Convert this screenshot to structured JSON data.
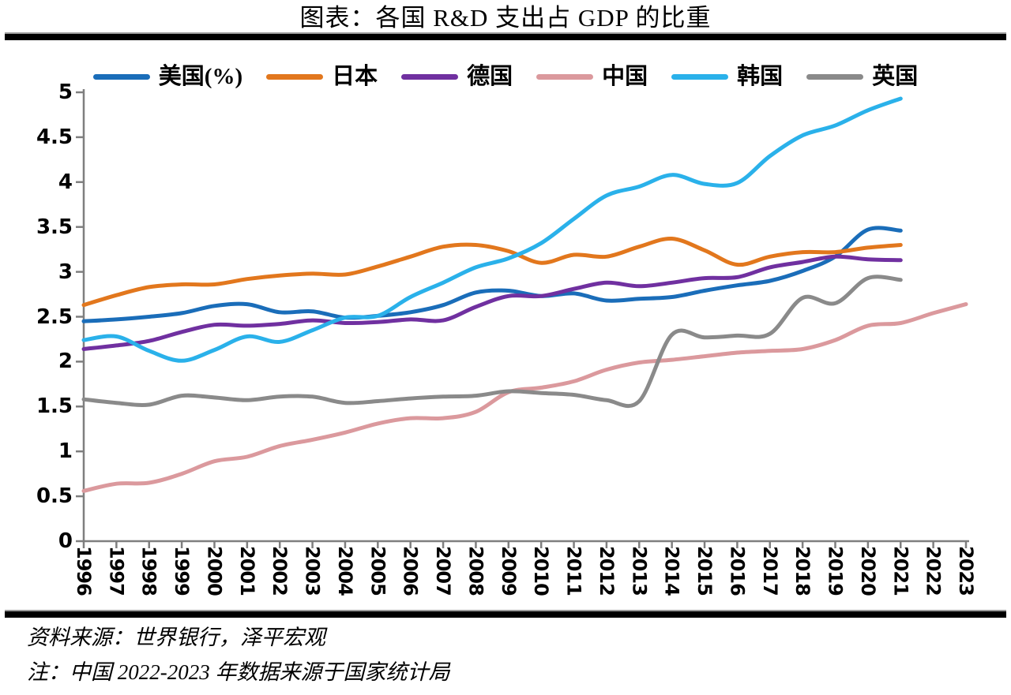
{
  "title": "图表：各国 R&D 支出占 GDP 的比重",
  "footer": {
    "source": "资料来源：世界银行，泽平宏观",
    "note": "注：中国 2022-2023 年数据来源于国家统计局"
  },
  "axis_color": "#7f7f7f",
  "chart_data": {
    "type": "line",
    "title": "图表：各国 R&D 支出占 GDP 的比重",
    "xlabel": "",
    "ylabel": "",
    "ylim": [
      0,
      5
    ],
    "grid": false,
    "legend_position": "top",
    "smoothed_lines": true,
    "y_tick_labels": [
      "0",
      "0.5",
      "1",
      "1.5",
      "2",
      "2.5",
      "3",
      "3.5",
      "4",
      "4.5",
      "5"
    ],
    "y_ticks": [
      0,
      0.5,
      1,
      1.5,
      2,
      2.5,
      3,
      3.5,
      4,
      4.5,
      5
    ],
    "x_labels": [
      "1996",
      "1997",
      "1998",
      "1999",
      "2000",
      "2001",
      "2002",
      "2003",
      "2004",
      "2005",
      "2006",
      "2007",
      "2008",
      "2009",
      "2010",
      "2011",
      "2012",
      "2013",
      "2014",
      "2015",
      "2016",
      "2017",
      "2018",
      "2019",
      "2020",
      "2021",
      "2022",
      "2023"
    ],
    "x_start_year": 1996,
    "series": [
      {
        "id": "us",
        "name": "美国(%)",
        "color": "#1a6db9",
        "values": [
          2.45,
          2.47,
          2.5,
          2.54,
          2.62,
          2.64,
          2.55,
          2.56,
          2.49,
          2.51,
          2.55,
          2.63,
          2.77,
          2.79,
          2.73,
          2.76,
          2.68,
          2.7,
          2.72,
          2.79,
          2.85,
          2.9,
          3.01,
          3.17,
          3.47,
          3.46
        ]
      },
      {
        "id": "japan",
        "name": "日本",
        "color": "#e2771d",
        "values": [
          2.63,
          2.74,
          2.83,
          2.86,
          2.86,
          2.92,
          2.96,
          2.98,
          2.97,
          3.06,
          3.17,
          3.28,
          3.3,
          3.23,
          3.1,
          3.19,
          3.17,
          3.28,
          3.37,
          3.24,
          3.08,
          3.17,
          3.22,
          3.22,
          3.27,
          3.3
        ]
      },
      {
        "id": "germany",
        "name": "德国",
        "color": "#7030a0",
        "values": [
          2.14,
          2.18,
          2.23,
          2.33,
          2.41,
          2.4,
          2.42,
          2.46,
          2.43,
          2.44,
          2.47,
          2.46,
          2.61,
          2.73,
          2.73,
          2.81,
          2.88,
          2.84,
          2.88,
          2.93,
          2.94,
          3.05,
          3.11,
          3.17,
          3.14,
          3.13
        ]
      },
      {
        "id": "china",
        "name": "中国",
        "color": "#db999d",
        "values": [
          0.56,
          0.64,
          0.65,
          0.75,
          0.89,
          0.94,
          1.06,
          1.13,
          1.21,
          1.31,
          1.37,
          1.37,
          1.44,
          1.66,
          1.71,
          1.78,
          1.91,
          1.99,
          2.02,
          2.06,
          2.1,
          2.12,
          2.14,
          2.24,
          2.4,
          2.43,
          2.54,
          2.64
        ]
      },
      {
        "id": "korea",
        "name": "韩国",
        "color": "#2ab1ea",
        "values": [
          2.24,
          2.28,
          2.12,
          2.01,
          2.13,
          2.28,
          2.22,
          2.35,
          2.49,
          2.51,
          2.72,
          2.88,
          3.05,
          3.15,
          3.32,
          3.59,
          3.85,
          3.95,
          4.08,
          3.98,
          3.99,
          4.29,
          4.52,
          4.63,
          4.8,
          4.93
        ]
      },
      {
        "id": "uk",
        "name": "英国",
        "color": "#8a8a8a",
        "values": [
          1.58,
          1.54,
          1.52,
          1.62,
          1.6,
          1.57,
          1.61,
          1.61,
          1.54,
          1.56,
          1.59,
          1.61,
          1.62,
          1.67,
          1.65,
          1.63,
          1.57,
          1.56,
          2.3,
          2.27,
          2.29,
          2.31,
          2.71,
          2.65,
          2.93,
          2.91
        ]
      }
    ]
  }
}
